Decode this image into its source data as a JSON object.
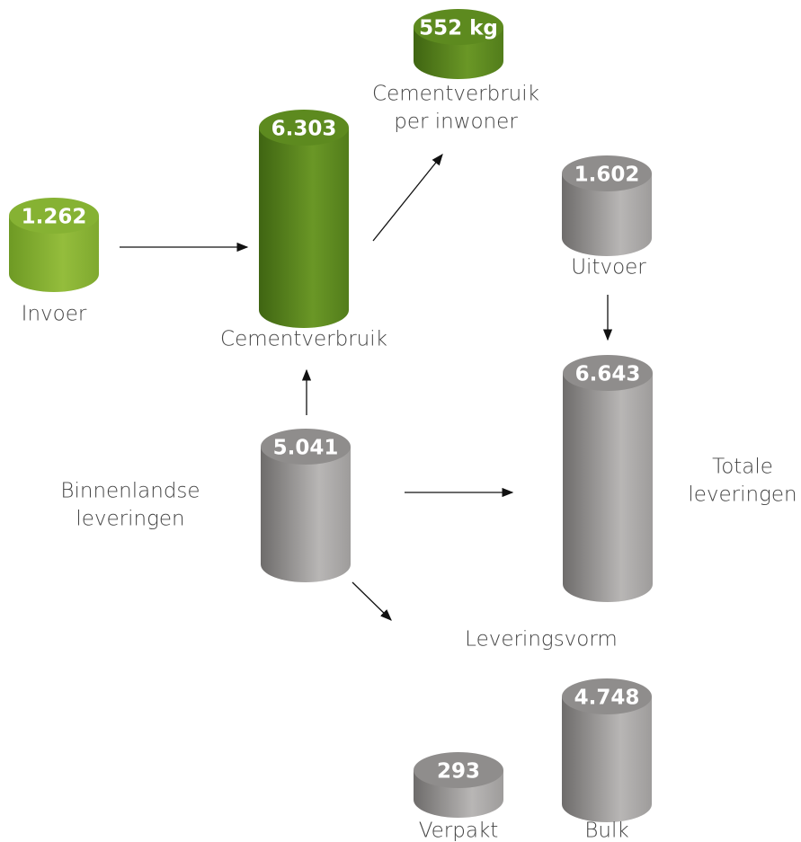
{
  "nodes": [
    {
      "value": "552 kg",
      "label": [
        "Cementverbruik",
        "per inwoner"
      ]
    },
    {
      "value": "6.303",
      "label": [
        "Cementverbruik"
      ]
    },
    {
      "value": "1.262",
      "label": [
        "Invoer"
      ]
    },
    {
      "value": "1.602",
      "label": [
        "Uitvoer"
      ]
    },
    {
      "value": "6.643",
      "label": [
        "Totale",
        "leveringen"
      ]
    },
    {
      "value": "5.041",
      "label": [
        "Binnenlandse",
        "leveringen"
      ]
    },
    {
      "value": "293",
      "label": [
        "Verpakt"
      ]
    },
    {
      "value": "4.748",
      "label": [
        "Bulk"
      ]
    }
  ],
  "heading": "Leveringsvorm"
}
